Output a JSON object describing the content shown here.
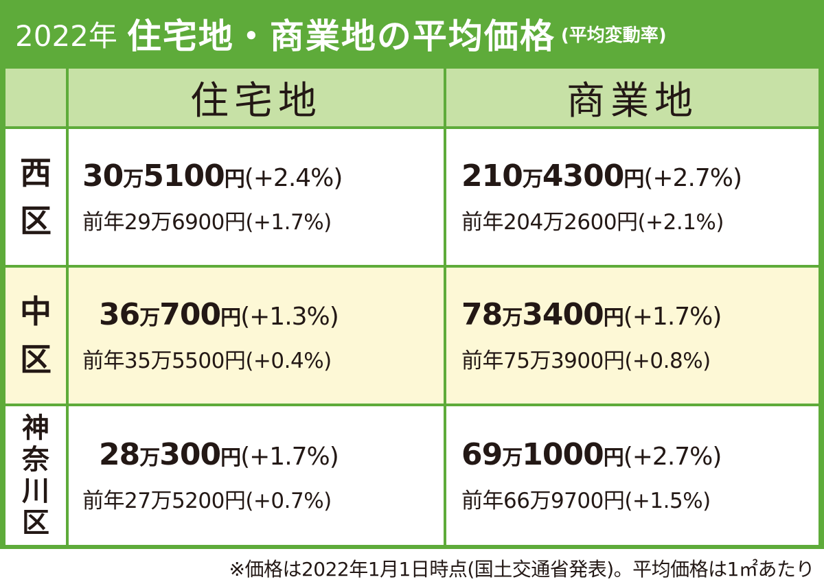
{
  "title": {
    "year": "2022年",
    "main": "住宅地・商業地の平均価格",
    "sub": "(平均変動率)"
  },
  "header": {
    "residential": "住宅地",
    "commercial": "商業地"
  },
  "rows": [
    {
      "ward": [
        "西",
        "区"
      ],
      "residential": {
        "man": "30",
        "rest": "5100",
        "change": "(+2.4%)",
        "prev": "前年29万6900円(+1.7%)"
      },
      "commercial": {
        "man": "210",
        "rest": "4300",
        "change": "(+2.7%)",
        "prev": "前年204万2600円(+2.1%)"
      }
    },
    {
      "ward": [
        "中",
        "区"
      ],
      "residential": {
        "man": "36",
        "rest": "700",
        "change": "(+1.3%)",
        "prev": "前年35万5500円(+0.4%)"
      },
      "commercial": {
        "man": "78",
        "rest": "3400",
        "change": "(+1.7%)",
        "prev": "前年75万3900円(+0.8%)"
      }
    },
    {
      "ward": [
        "神",
        "奈",
        "川",
        "区"
      ],
      "residential": {
        "man": "28",
        "rest": "300",
        "change": "(+1.7%)",
        "prev": "前年27万5200円(+0.7%)"
      },
      "commercial": {
        "man": "69",
        "rest": "1000",
        "change": "(+2.7%)",
        "prev": "前年66万9700円(+1.5%)"
      }
    }
  ],
  "units": {
    "man": "万",
    "yen": "円"
  },
  "footnote": "※価格は2022年1月1日時点(国土交通省発表)。平均価格は1㎡あたり",
  "colors": {
    "frame_green": "#5eab3a",
    "header_green": "#c7e1a6",
    "cream_row": "#fdf8d6",
    "text": "#231815"
  }
}
